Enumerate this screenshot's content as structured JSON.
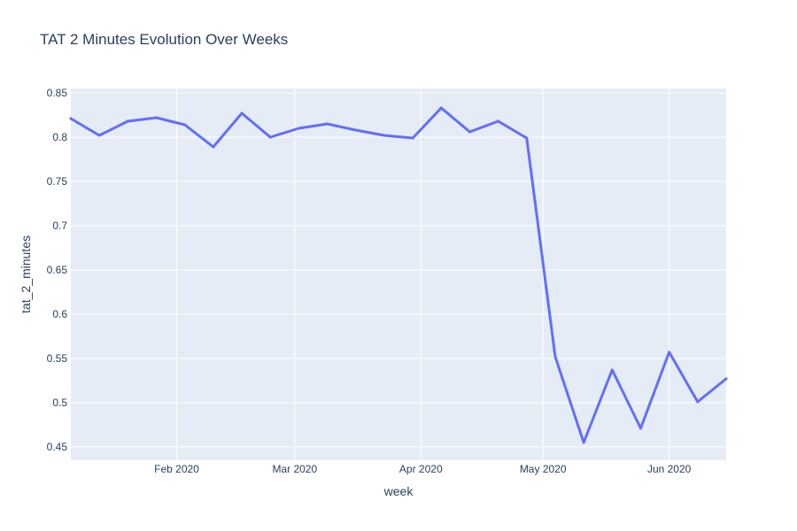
{
  "chart_data": {
    "type": "line",
    "title": "TAT 2 Minutes Evolution Over Weeks",
    "xlabel": "week",
    "ylabel": "tat_2_minutes",
    "x_type": "date",
    "x": [
      "2020-01-06",
      "2020-01-13",
      "2020-01-20",
      "2020-01-27",
      "2020-02-03",
      "2020-02-10",
      "2020-02-17",
      "2020-02-24",
      "2020-03-02",
      "2020-03-09",
      "2020-03-16",
      "2020-03-23",
      "2020-03-30",
      "2020-04-06",
      "2020-04-13",
      "2020-04-20",
      "2020-04-27",
      "2020-05-04",
      "2020-05-11",
      "2020-05-18",
      "2020-05-25",
      "2020-06-01",
      "2020-06-08",
      "2020-06-15"
    ],
    "series": [
      {
        "values": [
          0.821,
          0.802,
          0.818,
          0.822,
          0.814,
          0.789,
          0.827,
          0.8,
          0.81,
          0.815,
          0.808,
          0.802,
          0.799,
          0.833,
          0.806,
          0.818,
          0.799,
          0.552,
          0.455,
          0.537,
          0.471,
          0.557,
          0.501,
          0.527
        ],
        "color": "#636efa"
      }
    ],
    "x_range": [
      "2020-01-06",
      "2020-06-15"
    ],
    "ylim": [
      0.435,
      0.855
    ],
    "x_ticks": [
      {
        "date": "2020-02-01",
        "label": "Feb 2020"
      },
      {
        "date": "2020-03-01",
        "label": "Mar 2020"
      },
      {
        "date": "2020-04-01",
        "label": "Apr 2020"
      },
      {
        "date": "2020-05-01",
        "label": "May 2020"
      },
      {
        "date": "2020-06-01",
        "label": "Jun 2020"
      }
    ],
    "y_ticks": [
      {
        "value": 0.45,
        "label": "0.45"
      },
      {
        "value": 0.5,
        "label": "0.5"
      },
      {
        "value": 0.55,
        "label": "0.55"
      },
      {
        "value": 0.6,
        "label": "0.6"
      },
      {
        "value": 0.65,
        "label": "0.65"
      },
      {
        "value": 0.7,
        "label": "0.7"
      },
      {
        "value": 0.75,
        "label": "0.75"
      },
      {
        "value": 0.8,
        "label": "0.8"
      },
      {
        "value": 0.85,
        "label": "0.85"
      }
    ],
    "grid": true,
    "legend": "none",
    "colors": {
      "plot_bg": "#e5ecf6",
      "grid": "#ffffff",
      "text": "#2a3f5f"
    }
  }
}
